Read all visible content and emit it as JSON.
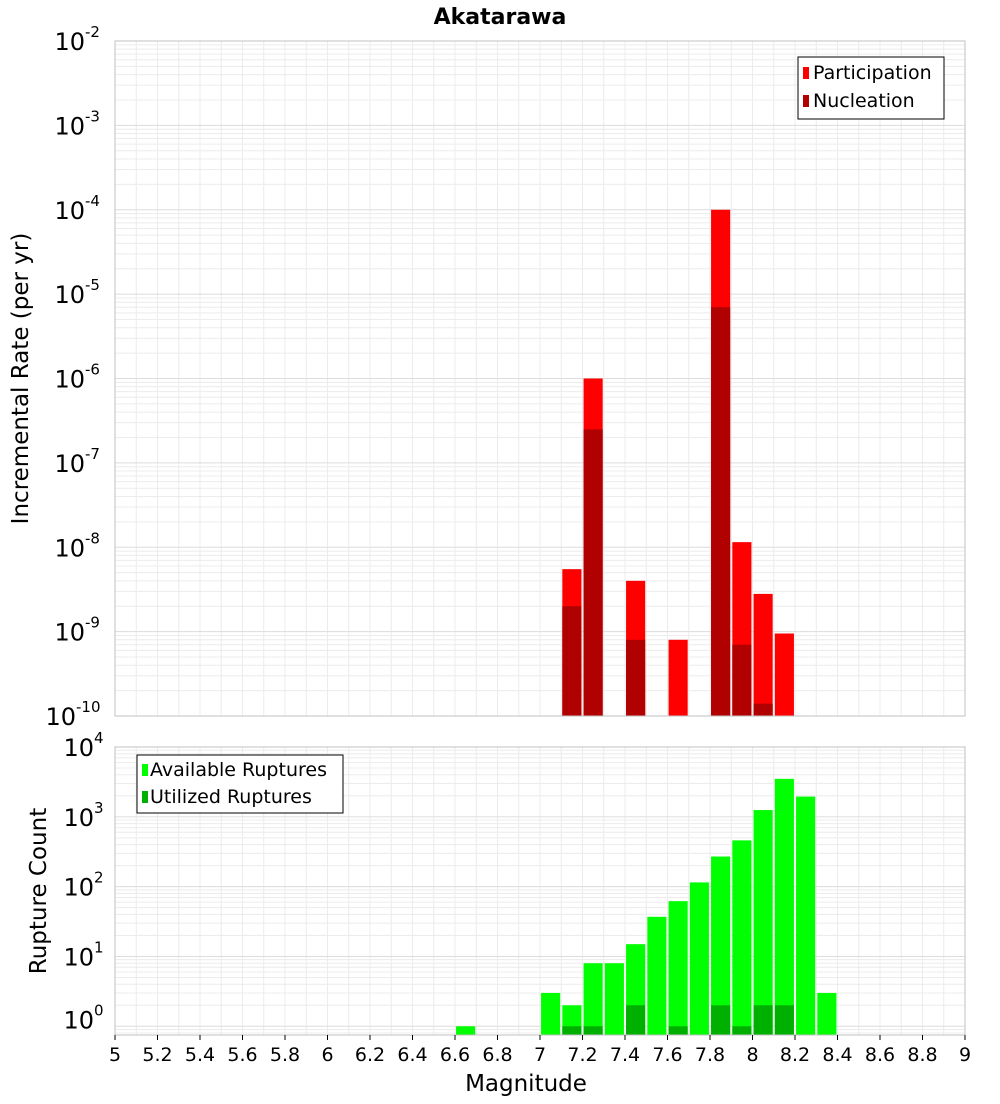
{
  "title": "Akatarawa",
  "colors": {
    "participation": "#ff0000",
    "nucleation": "#b00000",
    "available": "#00ff00",
    "utilized": "#00b000",
    "grid": "#ececec",
    "frame": "#c0c0c0"
  },
  "chart_data": [
    {
      "type": "bar",
      "title": "Akatarawa",
      "ylabel": "Incremental Rate (per yr)",
      "xlabel": "",
      "yscale": "log",
      "xlim": [
        5,
        9
      ],
      "ylim": [
        1e-10,
        0.01
      ],
      "y_tick_bases": [
        "10",
        "10",
        "10",
        "10",
        "10",
        "10",
        "10",
        "10",
        "10"
      ],
      "y_tick_exponents": [
        "-10",
        "-9",
        "-8",
        "-7",
        "-6",
        "-5",
        "-4",
        "-3",
        "-2"
      ],
      "bar_width": 0.09,
      "legend": [
        "Participation",
        "Nucleation"
      ],
      "legend_position": "top-right",
      "series": [
        {
          "name": "Participation",
          "x": [
            7.15,
            7.25,
            7.45,
            7.65,
            7.85,
            7.95,
            8.05,
            8.15
          ],
          "values": [
            5.5e-09,
            1e-06,
            4e-09,
            8e-10,
            0.0001,
            1.15e-08,
            2.8e-09,
            9.5e-10
          ]
        },
        {
          "name": "Nucleation",
          "x": [
            7.15,
            7.25,
            7.45,
            7.85,
            7.95,
            8.05
          ],
          "values": [
            2e-09,
            2.5e-07,
            8e-10,
            7e-06,
            7e-10,
            1.4e-10
          ]
        }
      ]
    },
    {
      "type": "bar",
      "ylabel": "Rupture Count",
      "xlabel": "Magnitude",
      "yscale": "log",
      "xlim": [
        5,
        9
      ],
      "ylim": [
        0.75,
        10000
      ],
      "x_ticks": [
        "5",
        "5.2",
        "5.4",
        "5.6",
        "5.8",
        "6",
        "6.2",
        "6.4",
        "6.6",
        "6.8",
        "7",
        "7.2",
        "7.4",
        "7.6",
        "7.8",
        "8",
        "8.2",
        "8.4",
        "8.6",
        "8.8",
        "9"
      ],
      "y_tick_bases": [
        "10",
        "10",
        "10",
        "10",
        "10"
      ],
      "y_tick_exponents": [
        "0",
        "1",
        "2",
        "3",
        "4"
      ],
      "bar_width": 0.09,
      "legend": [
        "Available Ruptures",
        "Utilized Ruptures"
      ],
      "legend_position": "top-left",
      "series": [
        {
          "name": "Available Ruptures",
          "x": [
            6.65,
            7.05,
            7.15,
            7.25,
            7.35,
            7.45,
            7.55,
            7.65,
            7.75,
            7.85,
            7.95,
            8.05,
            8.15,
            8.25,
            8.35
          ],
          "values": [
            1,
            3,
            2,
            8,
            8,
            15,
            37,
            62,
            115,
            270,
            460,
            1250,
            3500,
            1950,
            3
          ]
        },
        {
          "name": "Utilized Ruptures",
          "x": [
            7.15,
            7.25,
            7.45,
            7.65,
            7.85,
            7.95,
            8.05,
            8.15
          ],
          "values": [
            1,
            1,
            2,
            1,
            2,
            1,
            2,
            2
          ]
        }
      ]
    }
  ]
}
